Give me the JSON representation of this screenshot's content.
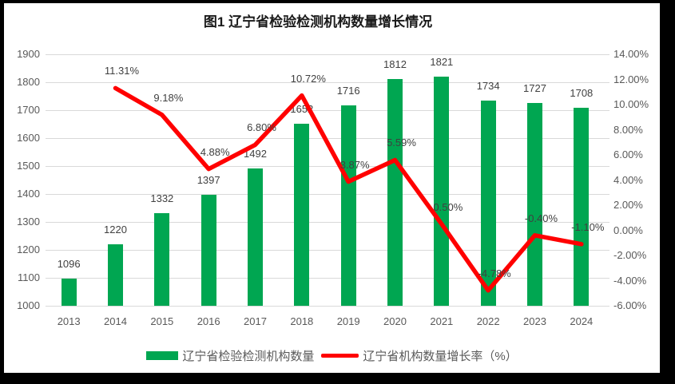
{
  "chart_data": {
    "type": "bar+line",
    "title": "图1 辽宁省检验检测机构数量增长情况",
    "categories": [
      "2013",
      "2014",
      "2015",
      "2016",
      "2017",
      "2018",
      "2019",
      "2020",
      "2021",
      "2022",
      "2023",
      "2024"
    ],
    "series": [
      {
        "name": "辽宁省检验检测机构数量",
        "type": "bar",
        "axis": "left",
        "color": "#00A651",
        "values": [
          1096,
          1220,
          1332,
          1397,
          1492,
          1652,
          1716,
          1812,
          1821,
          1734,
          1727,
          1708
        ],
        "labels": [
          "1096",
          "1220",
          "1332",
          "1397",
          "1492",
          "1652",
          "1716",
          "1812",
          "1821",
          "1734",
          "1727",
          "1708"
        ]
      },
      {
        "name": "辽宁省机构数量增长率（%）",
        "type": "line",
        "axis": "right",
        "color": "#FF0000",
        "values": [
          null,
          11.31,
          9.18,
          4.88,
          6.8,
          10.72,
          3.87,
          5.59,
          0.5,
          -4.78,
          -0.4,
          -1.1
        ],
        "labels": [
          "",
          "11.31%",
          "9.18%",
          "4.88%",
          "6.80%",
          "10.72%",
          "3.87%",
          "5.59%",
          "0.50%",
          "-4.78%",
          "-0.40%",
          "-1.10%"
        ]
      }
    ],
    "left_axis": {
      "min": 1000,
      "max": 1900,
      "step": 100,
      "ticks": [
        "1900",
        "1800",
        "1700",
        "1600",
        "1500",
        "1400",
        "1300",
        "1200",
        "1100",
        "1000"
      ]
    },
    "right_axis": {
      "min": -6,
      "max": 14,
      "step": 2,
      "ticks": [
        "14.00%",
        "12.00%",
        "10.00%",
        "8.00%",
        "6.00%",
        "4.00%",
        "2.00%",
        "0.00%",
        "-2.00%",
        "-4.00%",
        "-6.00%"
      ]
    },
    "grid": true,
    "legend_position": "bottom",
    "legend": [
      {
        "label": "辽宁省检验检测机构数量",
        "color": "#00A651"
      },
      {
        "label": "辽宁省机构数量增长率（%）",
        "color": "#FF0000"
      }
    ],
    "colors": {
      "bar": "#00A651",
      "line": "#FF0000",
      "grid": "#d9d9d9",
      "axis_text": "#595959",
      "data_label_text": "#404040",
      "frame": "#000000",
      "background": "#ffffff"
    }
  }
}
